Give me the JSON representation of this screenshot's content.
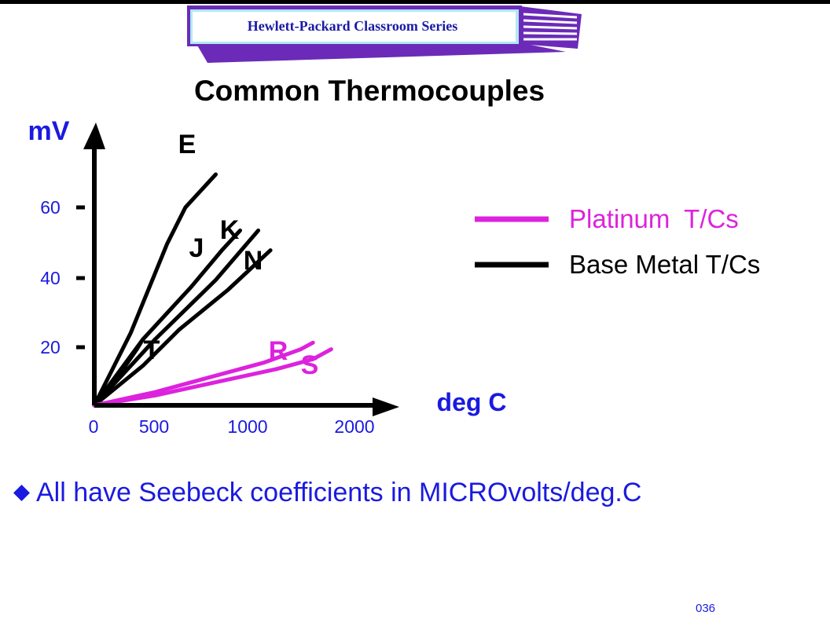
{
  "header": {
    "label": "Hewlett-Packard Classroom Series",
    "colors": {
      "band": "#6b2bb8",
      "label_text": "#1a1aa6",
      "frame": "#b0e8f5"
    }
  },
  "slide": {
    "title": "Common Thermocouples",
    "bullet_icon": "diamond-bullet-icon",
    "bullet_text": "All have Seebeck coefficients in MICROvolts/deg.C",
    "page_number": "036"
  },
  "chart_data": {
    "type": "line",
    "title": "",
    "xlabel": "deg C",
    "ylabel": "mV",
    "xlim": [
      0,
      2200
    ],
    "ylim": [
      0,
      80
    ],
    "x_ticks": [
      "0",
      "500",
      "1000",
      "2000"
    ],
    "y_ticks": [
      "20",
      "40",
      "60"
    ],
    "grid": false,
    "legend_position": "right",
    "legend": [
      {
        "label": "Platinum  T/Cs",
        "color": "#dd22dd"
      },
      {
        "label": "Base Metal T/Cs",
        "color": "#000000"
      }
    ],
    "series": [
      {
        "name": "E",
        "group": "Base Metal T/Cs",
        "color": "#000000",
        "points": [
          [
            0,
            0
          ],
          [
            300,
            22
          ],
          [
            600,
            49
          ],
          [
            750,
            60
          ],
          [
            1000,
            70
          ]
        ]
      },
      {
        "name": "J",
        "group": "Base Metal T/Cs",
        "color": "#000000",
        "points": [
          [
            0,
            0
          ],
          [
            400,
            20
          ],
          [
            800,
            36
          ],
          [
            1050,
            47
          ],
          [
            1200,
            53
          ]
        ]
      },
      {
        "name": "K",
        "group": "Base Metal T/Cs",
        "color": "#000000",
        "points": [
          [
            0,
            0
          ],
          [
            300,
            12
          ],
          [
            500,
            20
          ],
          [
            1000,
            38
          ],
          [
            1350,
            53
          ]
        ]
      },
      {
        "name": "N",
        "group": "Base Metal T/Cs",
        "color": "#000000",
        "points": [
          [
            0,
            0
          ],
          [
            400,
            12
          ],
          [
            700,
            23
          ],
          [
            1100,
            35
          ],
          [
            1450,
            47
          ]
        ]
      },
      {
        "name": "T",
        "group": "Base Metal T/Cs",
        "color": "#000000",
        "points": [
          [
            0,
            0
          ],
          [
            200,
            9
          ],
          [
            350,
            17
          ],
          [
            400,
            20
          ]
        ]
      },
      {
        "name": "R",
        "group": "Platinum  T/Cs",
        "color": "#dd22dd",
        "points": [
          [
            0,
            0
          ],
          [
            500,
            4
          ],
          [
            1000,
            9
          ],
          [
            1400,
            13
          ],
          [
            1700,
            17
          ],
          [
            1800,
            19
          ]
        ]
      },
      {
        "name": "S",
        "group": "Platinum  T/Cs",
        "color": "#dd22dd",
        "points": [
          [
            0,
            0
          ],
          [
            500,
            3
          ],
          [
            1000,
            7
          ],
          [
            1500,
            11
          ],
          [
            1800,
            14
          ],
          [
            1950,
            17
          ]
        ]
      }
    ]
  }
}
